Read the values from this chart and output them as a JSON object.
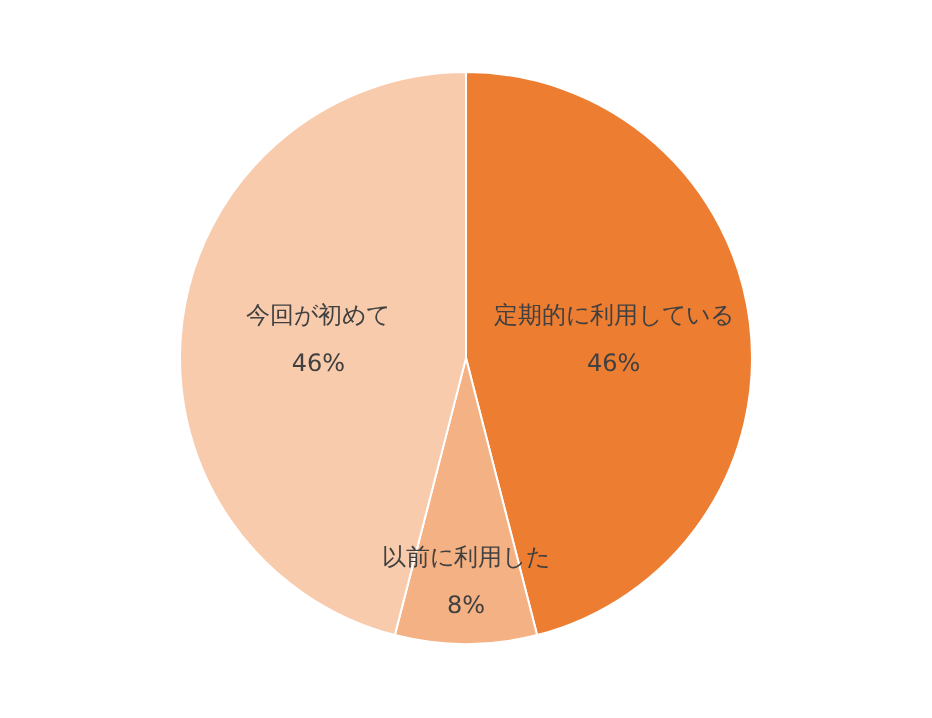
{
  "chart_data": {
    "type": "pie",
    "categories": [
      "定期的に利用している",
      "以前に利用した",
      "今回が初めて"
    ],
    "values": [
      46,
      8,
      46
    ],
    "value_labels": [
      "46%",
      "8%",
      "46%"
    ],
    "colors": [
      "#ed7d31",
      "#f4b183",
      "#f8cbad"
    ],
    "legend": false
  }
}
